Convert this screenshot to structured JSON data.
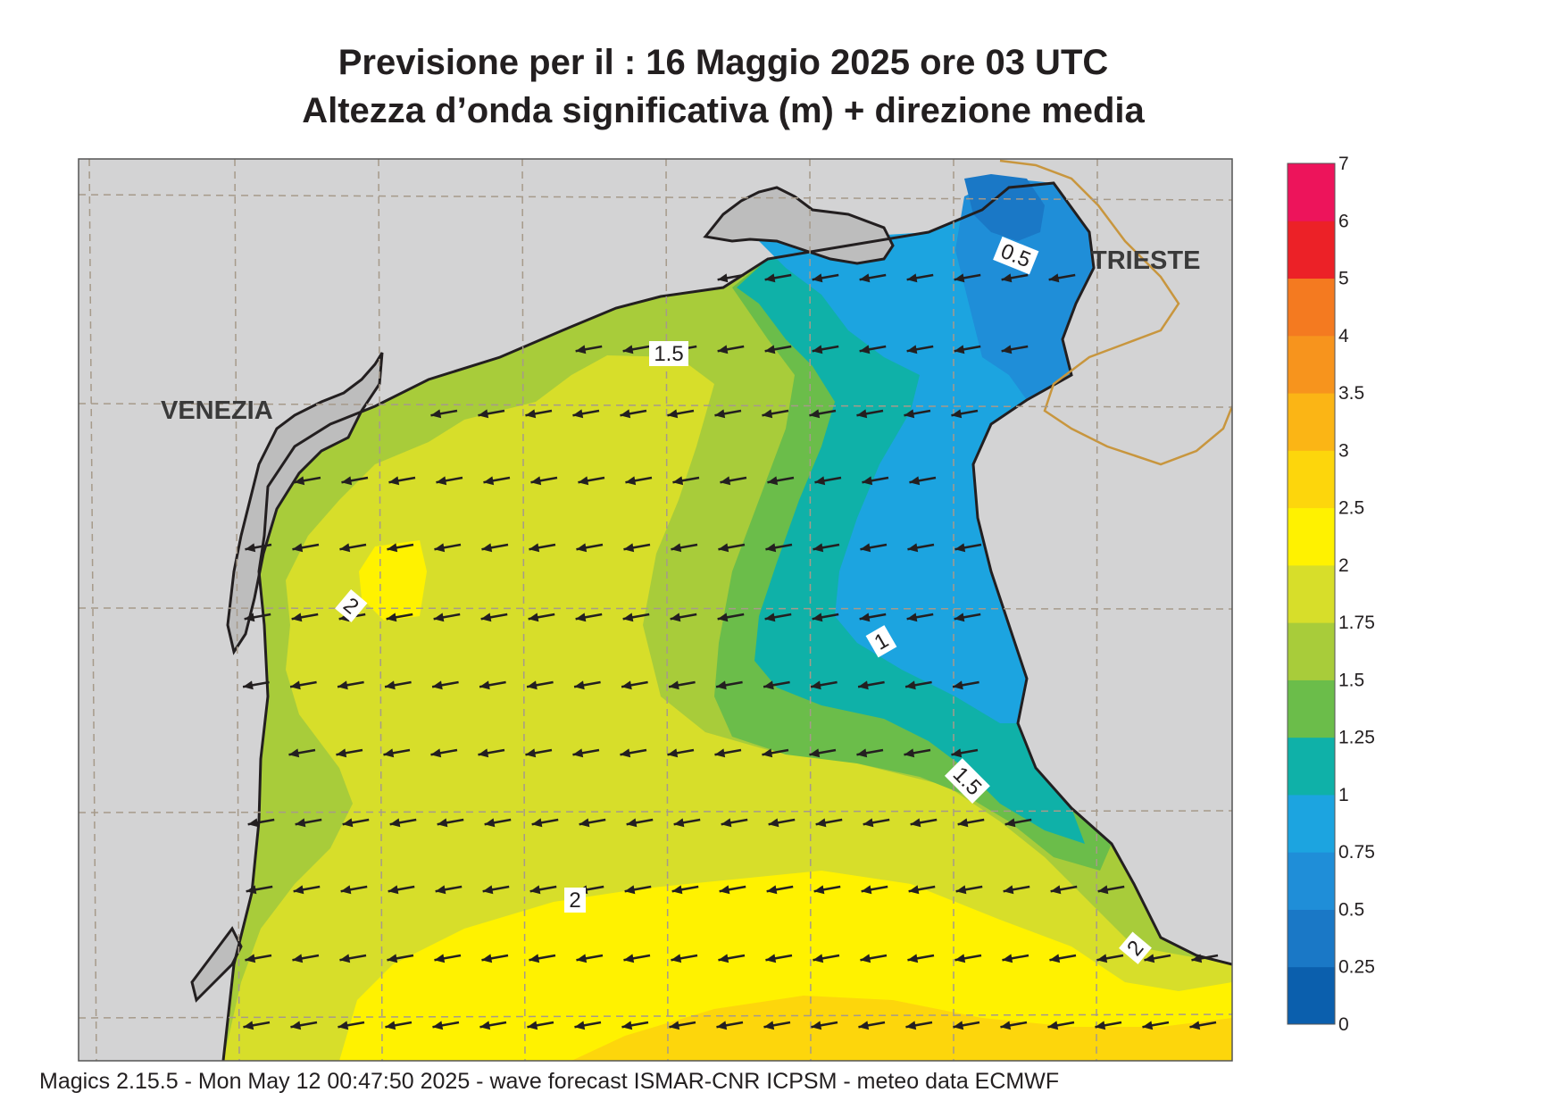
{
  "title": {
    "line1": "Previsione per il  :  16   Maggio  2025   ore 03 UTC",
    "line2": "Altezza d’onda significativa (m) + direzione media"
  },
  "cities": [
    {
      "name": "VENEZIA"
    },
    {
      "name": "TRIESTE"
    }
  ],
  "contour_labels": [
    "0.5",
    "1.5",
    "2",
    "1",
    "1.5",
    "2",
    "2"
  ],
  "colorbar": {
    "ticks": [
      "0",
      "0.25",
      "0.5",
      "0.75",
      "1",
      "1.25",
      "1.5",
      "1.75",
      "2",
      "2.5",
      "3",
      "3.5",
      "4",
      "5",
      "6",
      "7"
    ],
    "colors": [
      "#0b5fad",
      "#1a78c6",
      "#1f8ed8",
      "#1ca4e0",
      "#0fb1a8",
      "#6bbd4a",
      "#a8cc3a",
      "#d7de2a",
      "#fff200",
      "#fdd60c",
      "#fbb515",
      "#f7941d",
      "#f47a20",
      "#ec2127",
      "#ed145b"
    ]
  },
  "wave": {
    "direction_deg_toward": 260,
    "colors": {
      "land": "#d3d3d4",
      "lagoon": "#bdbdbd",
      "coast": "#231f20",
      "border": "#c8963e",
      "grid": "#a69a8a"
    }
  },
  "footer": "Magics 2.15.5 - Mon May 12 00:47:50 2025 - wave forecast  ISMAR-CNR  ICPSM - meteo data    ECMWF"
}
